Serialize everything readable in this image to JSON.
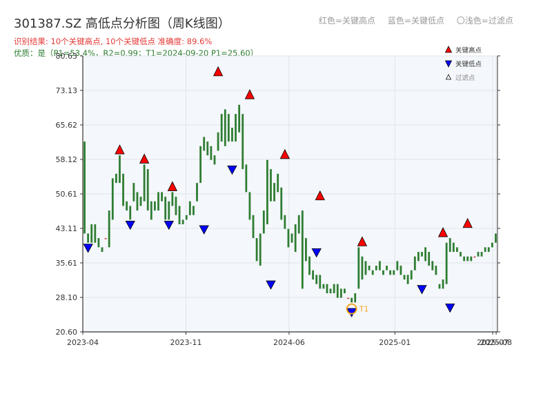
{
  "title": "301387.SZ 高低点分析图（周K线图）",
  "legend_top": {
    "red": "红色=关键高点",
    "blue": "蓝色=关键低点",
    "light": "〇浅色=过滤点"
  },
  "result_text": "识别结果: 10个关键高点, 10个关键低点   准确度: 89.6%",
  "quality_text": "优质：是（P1=53.4%，R2=0.99；T1=2024-09-20 P1=25.60）",
  "colors": {
    "up": "#d32f2f",
    "down": "#2e7d32",
    "high_marker": "#ff0000",
    "low_marker": "#0000ff",
    "t1": "#f5a623",
    "plot_bg": "#f4f7fb"
  },
  "chart_data": {
    "type": "candlestick",
    "ylim": [
      20.6,
      80.63
    ],
    "yticks": [
      "20.60",
      "28.10",
      "35.61",
      "43.11",
      "50.61",
      "58.12",
      "65.62",
      "73.13",
      "80.63"
    ],
    "xticks": [
      "2023-04",
      "2023-11",
      "2024-06",
      "2025-01",
      "2025-07",
      "2025-08"
    ],
    "legend": [
      {
        "label": "关键高点",
        "marker": "triangle-up"
      },
      {
        "label": "关键低点",
        "marker": "triangle-down"
      },
      {
        "label": "过滤点",
        "marker": "triangle-small"
      }
    ],
    "t1_label": "T1",
    "t1": {
      "index": 76,
      "value": 25.6
    },
    "candles": [
      [
        62,
        42
      ],
      [
        42,
        40
      ],
      [
        44,
        40
      ],
      [
        44,
        40
      ],
      [
        41,
        39
      ],
      [
        39,
        38
      ],
      [
        41,
        41
      ],
      [
        47,
        39
      ],
      [
        54,
        45
      ],
      [
        55,
        53
      ],
      [
        59,
        53
      ],
      [
        55,
        48
      ],
      [
        49,
        47
      ],
      [
        48,
        45
      ],
      [
        53,
        49
      ],
      [
        51,
        47
      ],
      [
        50,
        48
      ],
      [
        57,
        49
      ],
      [
        56,
        47
      ],
      [
        49,
        45
      ],
      [
        49,
        47
      ],
      [
        51,
        47
      ],
      [
        51,
        49
      ],
      [
        50,
        45
      ],
      [
        49,
        45
      ],
      [
        51,
        48
      ],
      [
        50,
        46
      ],
      [
        48,
        44
      ],
      [
        45,
        44
      ],
      [
        46,
        45
      ],
      [
        49,
        46
      ],
      [
        48,
        46
      ],
      [
        53,
        49
      ],
      [
        61,
        53
      ],
      [
        63,
        60
      ],
      [
        62,
        59
      ],
      [
        61,
        58
      ],
      [
        59,
        57
      ],
      [
        64,
        60
      ],
      [
        68,
        62
      ],
      [
        69,
        61
      ],
      [
        68,
        62
      ],
      [
        65,
        62
      ],
      [
        68,
        62
      ],
      [
        70,
        64
      ],
      [
        68,
        56
      ],
      [
        57,
        51
      ],
      [
        51,
        45
      ],
      [
        46,
        41
      ],
      [
        41,
        36
      ],
      [
        42,
        35
      ],
      [
        47,
        42
      ],
      [
        58,
        44
      ],
      [
        56,
        49
      ],
      [
        53,
        49
      ],
      [
        55,
        51
      ],
      [
        52,
        45
      ],
      [
        46,
        43
      ],
      [
        43,
        39
      ],
      [
        42,
        40
      ],
      [
        44,
        38
      ],
      [
        46,
        42
      ],
      [
        47,
        30
      ],
      [
        41,
        36
      ],
      [
        37,
        33
      ],
      [
        34,
        32
      ],
      [
        33,
        31
      ],
      [
        33,
        30
      ],
      [
        31,
        30
      ],
      [
        31,
        29
      ],
      [
        30,
        29
      ],
      [
        31,
        29
      ],
      [
        31,
        28
      ],
      [
        30,
        28
      ],
      [
        30,
        29
      ],
      [
        28,
        28
      ],
      [
        28,
        27
      ],
      [
        29,
        27
      ],
      [
        39,
        30
      ],
      [
        37,
        32
      ],
      [
        36,
        33
      ],
      [
        35,
        34
      ],
      [
        34,
        33
      ],
      [
        35,
        34
      ],
      [
        36,
        34
      ],
      [
        34,
        33
      ],
      [
        35,
        34
      ],
      [
        34,
        33
      ],
      [
        34,
        33
      ],
      [
        36,
        34
      ],
      [
        35,
        33
      ],
      [
        33,
        32
      ],
      [
        33,
        31
      ],
      [
        34,
        32
      ],
      [
        37,
        34
      ],
      [
        38,
        36
      ],
      [
        38,
        37
      ],
      [
        39,
        36
      ],
      [
        38,
        35
      ],
      [
        36,
        34
      ],
      [
        35,
        33
      ],
      [
        31,
        30
      ],
      [
        32,
        30
      ],
      [
        40,
        31
      ],
      [
        41,
        38
      ],
      [
        40,
        38
      ],
      [
        39,
        38
      ],
      [
        38,
        37
      ],
      [
        37,
        36
      ],
      [
        37,
        36
      ],
      [
        37,
        36
      ],
      [
        37,
        37
      ],
      [
        38,
        37
      ],
      [
        38,
        37
      ],
      [
        39,
        38
      ],
      [
        39,
        38
      ],
      [
        40,
        39
      ],
      [
        42,
        40
      ]
    ],
    "key_highs": [
      {
        "index": 10,
        "value": 59
      },
      {
        "index": 17,
        "value": 57
      },
      {
        "index": 25,
        "value": 51
      },
      {
        "index": 38,
        "value": 76
      },
      {
        "index": 47,
        "value": 71
      },
      {
        "index": 57,
        "value": 58
      },
      {
        "index": 67,
        "value": 49
      },
      {
        "index": 79,
        "value": 39
      },
      {
        "index": 102,
        "value": 41
      },
      {
        "index": 109,
        "value": 43
      }
    ],
    "key_lows": [
      {
        "index": 1,
        "value": 40
      },
      {
        "index": 13,
        "value": 45
      },
      {
        "index": 24,
        "value": 45
      },
      {
        "index": 34,
        "value": 44
      },
      {
        "index": 42,
        "value": 57
      },
      {
        "index": 53,
        "value": 32
      },
      {
        "index": 66,
        "value": 39
      },
      {
        "index": 76,
        "value": 26
      },
      {
        "index": 96,
        "value": 31
      },
      {
        "index": 104,
        "value": 27
      }
    ]
  }
}
